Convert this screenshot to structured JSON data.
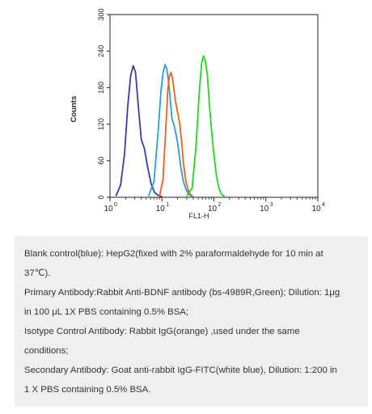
{
  "chart_data": {
    "type": "line",
    "subtype": "flow-cytometry-histogram-overlay",
    "xlabel": "FL1-H",
    "ylabel": "Counts",
    "x_scale": "log",
    "xlim": [
      1,
      10000
    ],
    "ylim": [
      0,
      300
    ],
    "x_ticks": [
      {
        "value": 1,
        "base": "10",
        "exp": "0"
      },
      {
        "value": 10,
        "base": "10",
        "exp": "1"
      },
      {
        "value": 100,
        "base": "10",
        "exp": "2"
      },
      {
        "value": 1000,
        "base": "10",
        "exp": "3"
      },
      {
        "value": 10000,
        "base": "10",
        "exp": "4"
      }
    ],
    "y_ticks": [
      "0",
      "60",
      "120",
      "180",
      "240",
      "300"
    ],
    "series": [
      {
        "color": "#3a3aa8",
        "x": [
          1.3,
          1.6,
          1.9,
          2.2,
          2.5,
          2.8,
          3.1,
          3.5,
          4,
          4.6,
          5.3,
          6.2,
          7.2,
          8.5,
          10
        ],
        "y": [
          2,
          20,
          70,
          150,
          200,
          216,
          205,
          150,
          95,
          80,
          50,
          22,
          8,
          3,
          1
        ]
      },
      {
        "color": "#2a9be6",
        "x": [
          5.5,
          7,
          8.5,
          9.5,
          10.5,
          11.5,
          12.5,
          14,
          15.5,
          17.5,
          20,
          23,
          26,
          30,
          35,
          40
        ],
        "y": [
          2,
          25,
          110,
          170,
          205,
          218,
          210,
          175,
          130,
          115,
          90,
          50,
          25,
          10,
          3,
          1
        ]
      },
      {
        "color": "#f06018",
        "x": [
          9,
          10.5,
          12,
          13,
          14,
          15,
          16,
          18,
          20,
          22,
          24,
          26,
          29,
          33,
          38
        ],
        "y": [
          2,
          30,
          120,
          178,
          200,
          205,
          195,
          160,
          140,
          120,
          90,
          55,
          25,
          8,
          2
        ]
      },
      {
        "color": "#20d820",
        "x": [
          30,
          38,
          45,
          52,
          58,
          63,
          68,
          75,
          82,
          90,
          100,
          112,
          125,
          140,
          160
        ],
        "y": [
          2,
          15,
          80,
          170,
          220,
          232,
          225,
          200,
          150,
          110,
          70,
          35,
          15,
          5,
          1
        ]
      }
    ]
  },
  "caption": {
    "lines": [
      "Blank control(blue): HepG2(fixed with 2% paraformaldehyde for 10 min at",
      "37℃).",
      "Primary Antibody:Rabbit Anti-BDNF antibody (bs-4989R,Green); Dilution: 1μg",
      "in 100 μL 1X PBS containing 0.5% BSA;",
      "Isotype Control Antibody: Rabbit IgG(orange) ,used under the same",
      "conditions;",
      "Secondary Antibody: Goat anti-rabbit IgG-FITC(white blue), Dilution: 1:200 in",
      "1 X PBS containing 0.5% BSA."
    ]
  }
}
